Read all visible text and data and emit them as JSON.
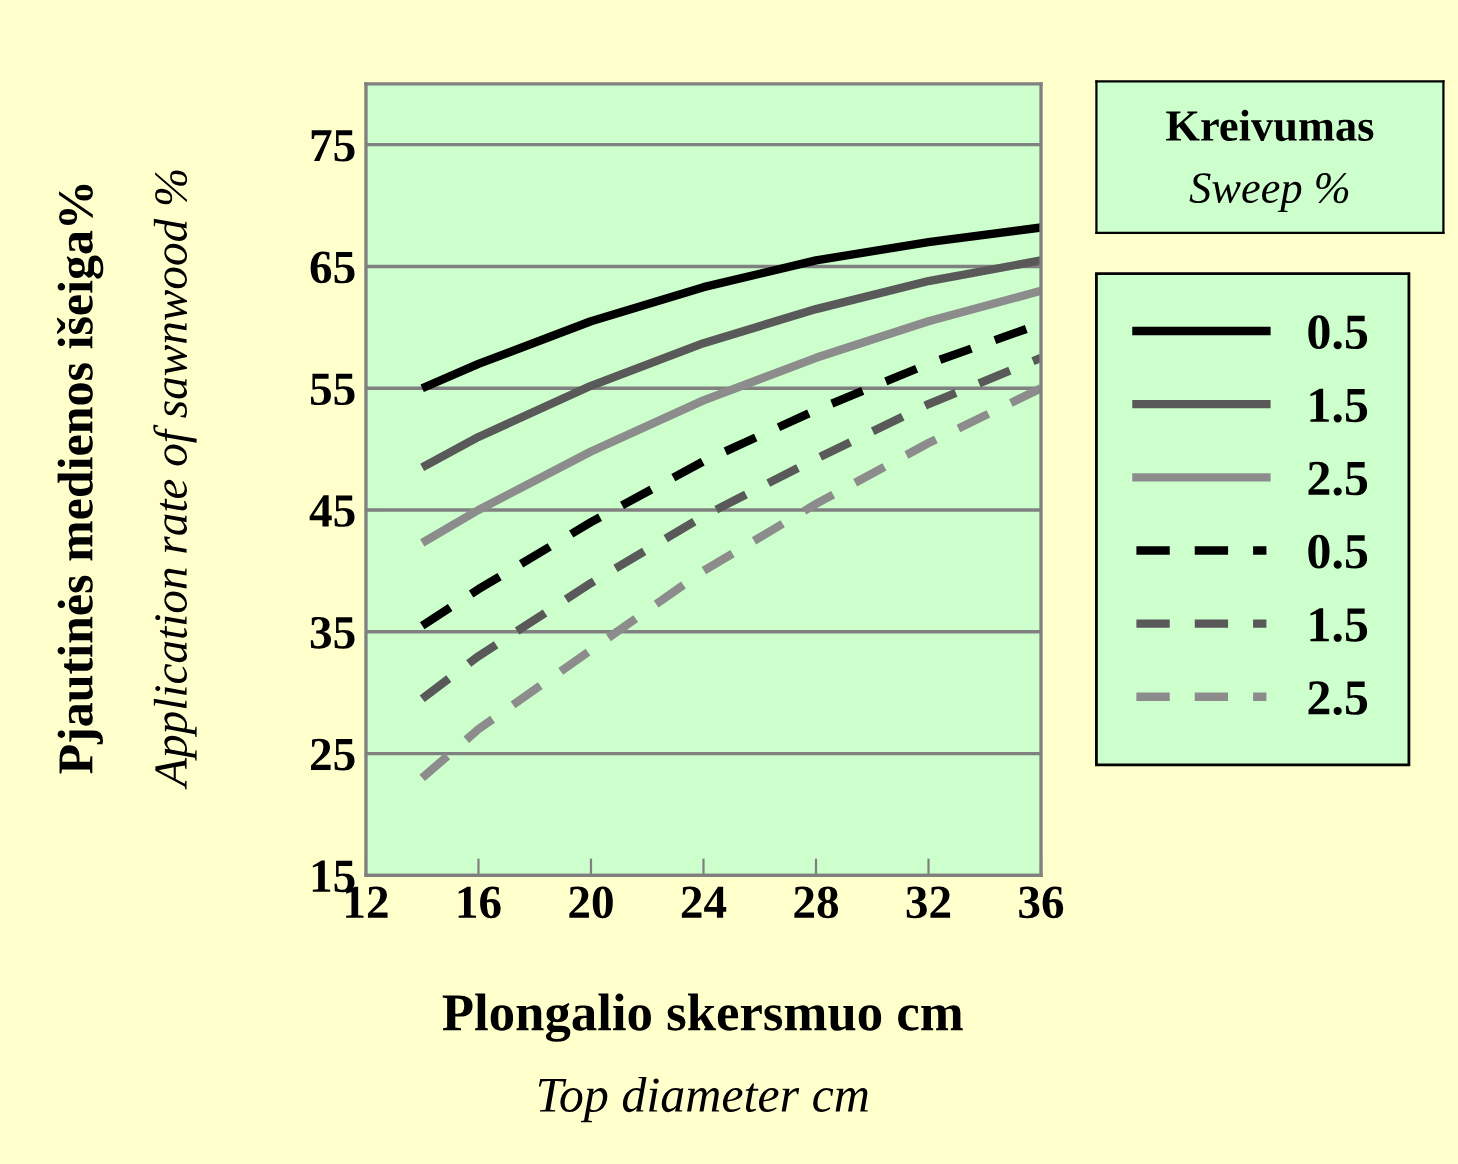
{
  "chart_data": {
    "type": "line",
    "xlabel": "Plongalio skersmuo cm\nTop diameter cm",
    "ylabel": "Pjautinės medienos išeiga%\nApplication rate of sawnwood %",
    "legend_title": "Kreivumas\nSweep %",
    "x": [
      14,
      16,
      20,
      24,
      28,
      32,
      36
    ],
    "series": [
      {
        "name": "0.5",
        "color": "#000000",
        "line_style": "solid",
        "values": [
          55,
          57,
          60.5,
          63.3,
          65.5,
          67,
          68.2
        ]
      },
      {
        "name": "1.5",
        "color": "#595959",
        "line_style": "solid",
        "values": [
          48.5,
          51,
          55.2,
          58.7,
          61.5,
          63.8,
          65.5
        ]
      },
      {
        "name": "2.5",
        "color": "#8c8c8c",
        "line_style": "solid",
        "values": [
          42.3,
          45,
          49.8,
          54,
          57.5,
          60.5,
          63
        ]
      },
      {
        "name": "0.5",
        "color": "#000000",
        "line_style": "dashed",
        "values": [
          35.5,
          38.5,
          44,
          49,
          53.2,
          57,
          60.3
        ]
      },
      {
        "name": "1.5",
        "color": "#595959",
        "line_style": "dashed",
        "values": [
          29.5,
          33,
          39,
          44.5,
          49.2,
          53.7,
          57.5
        ]
      },
      {
        "name": "2.5",
        "color": "#8c8c8c",
        "line_style": "dashed",
        "values": [
          23,
          27,
          33.5,
          40,
          45.5,
          50.5,
          55
        ]
      }
    ],
    "xlim": [
      12,
      36
    ],
    "xticks": [
      12,
      16,
      20,
      24,
      28,
      32,
      36
    ],
    "ylim": [
      15,
      80
    ],
    "yticks": [
      15,
      25,
      35,
      45,
      55,
      65,
      75
    ],
    "grid": "y",
    "legend": "right",
    "marker": "none"
  }
}
